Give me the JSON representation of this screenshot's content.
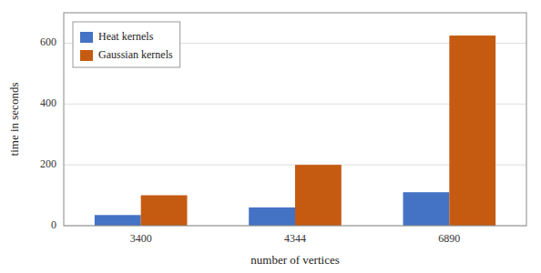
{
  "chart_data": {
    "type": "bar",
    "xlabel": "number of vertices",
    "ylabel": "time in seconds",
    "categories": [
      "3400",
      "4344",
      "6890"
    ],
    "series": [
      {
        "name": "Heat kernels",
        "color": "#4472C4",
        "values": [
          35,
          60,
          110
        ]
      },
      {
        "name": "Gaussian kernels",
        "color": "#C55A11",
        "values": [
          100,
          200,
          625
        ]
      }
    ],
    "ylim": [
      0,
      700
    ],
    "yticks": [
      0,
      200,
      400,
      600
    ],
    "grid": true,
    "legend": "upper left"
  }
}
